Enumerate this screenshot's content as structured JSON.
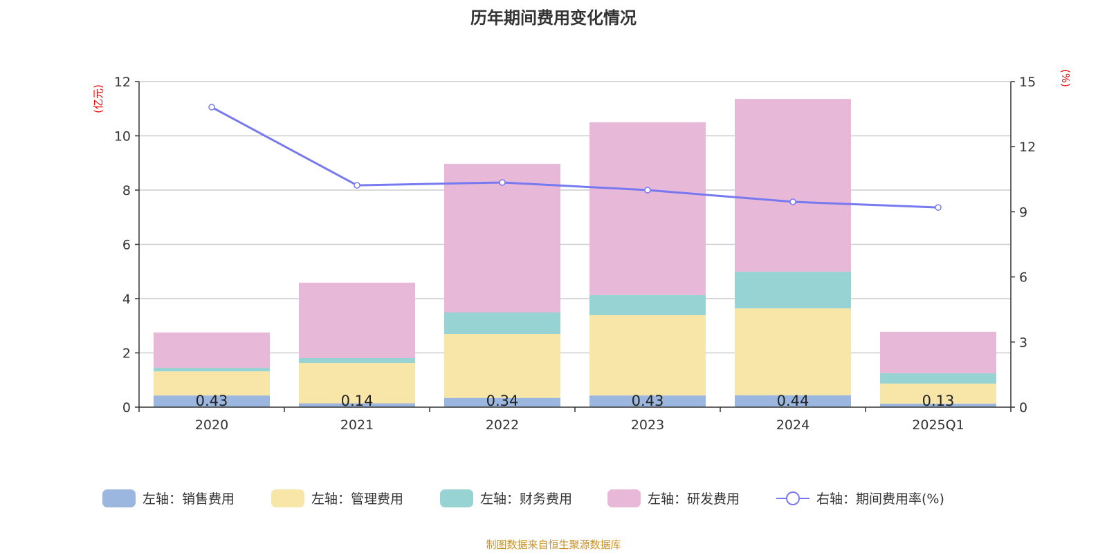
{
  "chart_data": {
    "type": "bar",
    "title": "历年期间费用变化情况",
    "categories": [
      "2020",
      "2021",
      "2022",
      "2023",
      "2024",
      "2025Q1"
    ],
    "left_axis": {
      "label": "(亿元)",
      "range": [
        0,
        12
      ],
      "ticks": [
        "0",
        "2",
        "4",
        "6",
        "8",
        "10",
        "12"
      ]
    },
    "right_axis": {
      "label": "(%)",
      "range": [
        0,
        15
      ],
      "ticks": [
        "0",
        "3",
        "6",
        "9",
        "12",
        "15"
      ]
    },
    "stacked": true,
    "grid": true,
    "legend_position": "bottom",
    "series": [
      {
        "name": "左轴：销售费用",
        "type": "bar",
        "axis": "left",
        "color": "#9bb7e0",
        "values": [
          0.43,
          0.14,
          0.34,
          0.43,
          0.44,
          0.13
        ],
        "labels": [
          "0.43",
          "0.14",
          "0.34",
          "0.43",
          "0.44",
          "0.13"
        ]
      },
      {
        "name": "左轴：管理费用",
        "type": "bar",
        "axis": "left",
        "color": "#f8e6a9",
        "values": [
          0.89,
          1.49,
          2.36,
          2.96,
          3.2,
          0.74
        ]
      },
      {
        "name": "左轴：财务费用",
        "type": "bar",
        "axis": "left",
        "color": "#98d3d4",
        "values": [
          0.13,
          0.18,
          0.79,
          0.74,
          1.35,
          0.38
        ]
      },
      {
        "name": "左轴：研发费用",
        "type": "bar",
        "axis": "left",
        "color": "#e7b8d7",
        "values": [
          1.3,
          2.78,
          5.48,
          6.37,
          6.37,
          1.53
        ]
      },
      {
        "name": "右轴：期间费用率(%)",
        "type": "line",
        "axis": "right",
        "color": "#7779f0",
        "values": [
          13.82,
          10.22,
          10.35,
          10.0,
          9.46,
          9.2
        ]
      }
    ]
  },
  "footer": "制图数据来自恒生聚源数据库"
}
